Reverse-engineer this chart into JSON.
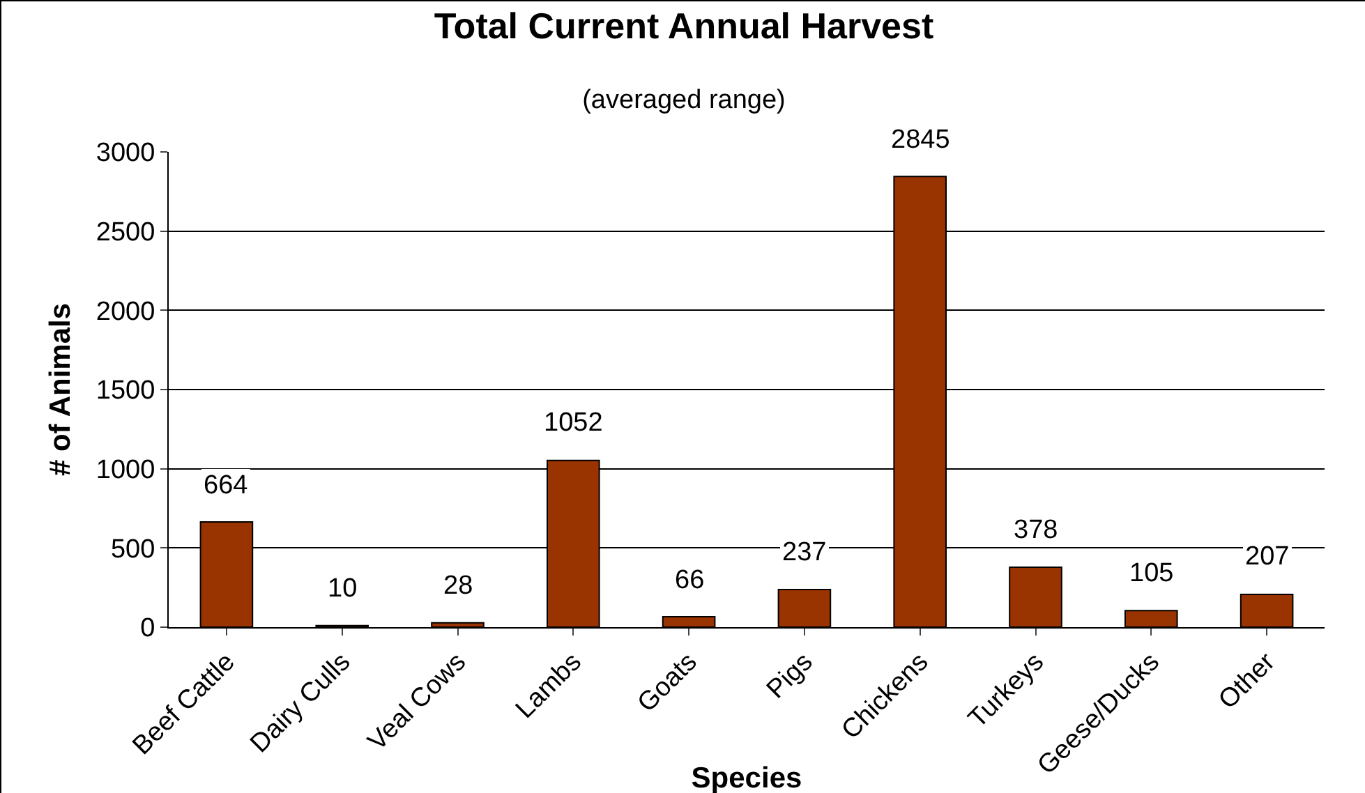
{
  "chart_data": {
    "type": "bar",
    "title": "Total Current Annual Harvest",
    "subtitle": "(averaged range)",
    "xlabel": "Species",
    "ylabel": "# of Animals",
    "categories": [
      "Beef Cattle",
      "Dairy Culls",
      "Veal Cows",
      "Lambs",
      "Goats",
      "Pigs",
      "Chickens",
      "Turkeys",
      "Geese/Ducks",
      "Other"
    ],
    "values": [
      664,
      10,
      28,
      1052,
      66,
      237,
      2845,
      378,
      105,
      207
    ],
    "color": "#993300",
    "ylim": [
      0,
      3000
    ],
    "yticks": [
      0,
      500,
      1000,
      1500,
      2000,
      2500,
      3000
    ],
    "grid": "y",
    "data_labels": true
  }
}
